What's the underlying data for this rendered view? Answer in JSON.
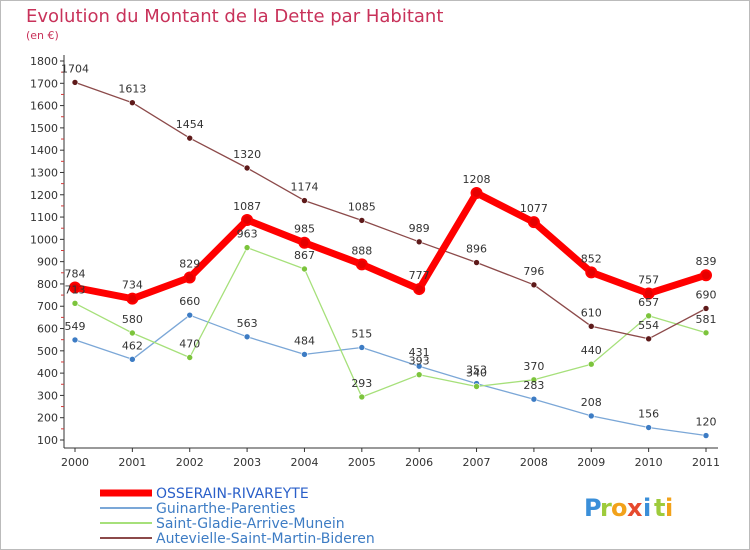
{
  "title": "Evolution du Montant de la Dette par Habitant",
  "subtitle": "(en €)",
  "logo": {
    "letters": [
      "P",
      "r",
      "o",
      "x",
      "i",
      "t",
      "i"
    ],
    "colors": [
      "#3a8fd9",
      "#9ecb3c",
      "#f2a21a",
      "#e64a2e",
      "#3a8fd9",
      "#9ecb3c",
      "#f2a21a"
    ]
  },
  "chart_data": {
    "type": "line",
    "title": "Evolution du Montant de la Dette par Habitant",
    "subtitle": "(en €)",
    "xlabel": "",
    "ylabel": "",
    "categories": [
      "2000",
      "2001",
      "2002",
      "2003",
      "2004",
      "2005",
      "2006",
      "2007",
      "2008",
      "2009",
      "2010",
      "2011"
    ],
    "ylim": [
      100,
      1800
    ],
    "yticks": [
      100,
      200,
      300,
      400,
      500,
      600,
      700,
      800,
      900,
      1000,
      1100,
      1200,
      1300,
      1400,
      1500,
      1600,
      1700,
      1800
    ],
    "grid": false,
    "legend_position": "bottom-left",
    "series": [
      {
        "name": "OSSERAIN-RIVAREYTE",
        "color": "#ff0000",
        "marker": "#e60000",
        "width": 7,
        "labels": true,
        "values": [
          784,
          734,
          829,
          1087,
          985,
          888,
          777,
          1208,
          1077,
          852,
          757,
          839
        ]
      },
      {
        "name": "Guinarthe-Parenties",
        "color": "#7ba7d7",
        "marker": "#3d7cc4",
        "width": 1.3,
        "labels": true,
        "values": [
          549,
          462,
          660,
          563,
          484,
          515,
          431,
          353,
          283,
          208,
          156,
          120
        ]
      },
      {
        "name": "Saint-Gladie-Arrive-Munein",
        "color": "#a6e07a",
        "marker": "#7cc43c",
        "width": 1.3,
        "labels": true,
        "values": [
          713,
          580,
          470,
          963,
          867,
          293,
          393,
          340,
          370,
          440,
          657,
          581
        ]
      },
      {
        "name": "Autevielle-Saint-Martin-Bideren",
        "color": "#8c4a4a",
        "marker": "#5e1a1a",
        "width": 1.3,
        "labels": true,
        "values": [
          1704,
          1613,
          1454,
          1320,
          1174,
          1085,
          989,
          896,
          796,
          610,
          554,
          690
        ]
      }
    ]
  }
}
